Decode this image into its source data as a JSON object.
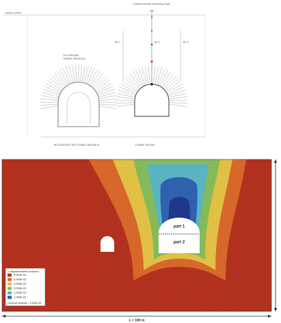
{
  "drawing": {
    "terrain_label": "terrain surface",
    "monitoring_label": "vertical borehole monitoring depth",
    "depth_label": "5 m",
    "borehole_labels": [
      "BP 1",
      "BP 2",
      "BP 3"
    ],
    "old_tunnel_label": [
      "OLD RAILWAY",
      "TUNNEL BRAJDICA"
    ],
    "left_tunnel_label": "RECONSTRUCTED TUNNEL BRAJDICA",
    "right_tunnel_label": "TUNNEL PECINE"
  },
  "model": {
    "part_labels": [
      "part 1",
      "part 2"
    ],
    "legend_title": "Y displacements contours",
    "legend_values": [
      "6.000E-02",
      "5.000E-02",
      "4.000E-02",
      "3.000E-02",
      "2.000E-02",
      "1.000E-02"
    ],
    "legend_note": "Contour interval = 2.50E-03",
    "width_label": "L = 100 m"
  }
}
